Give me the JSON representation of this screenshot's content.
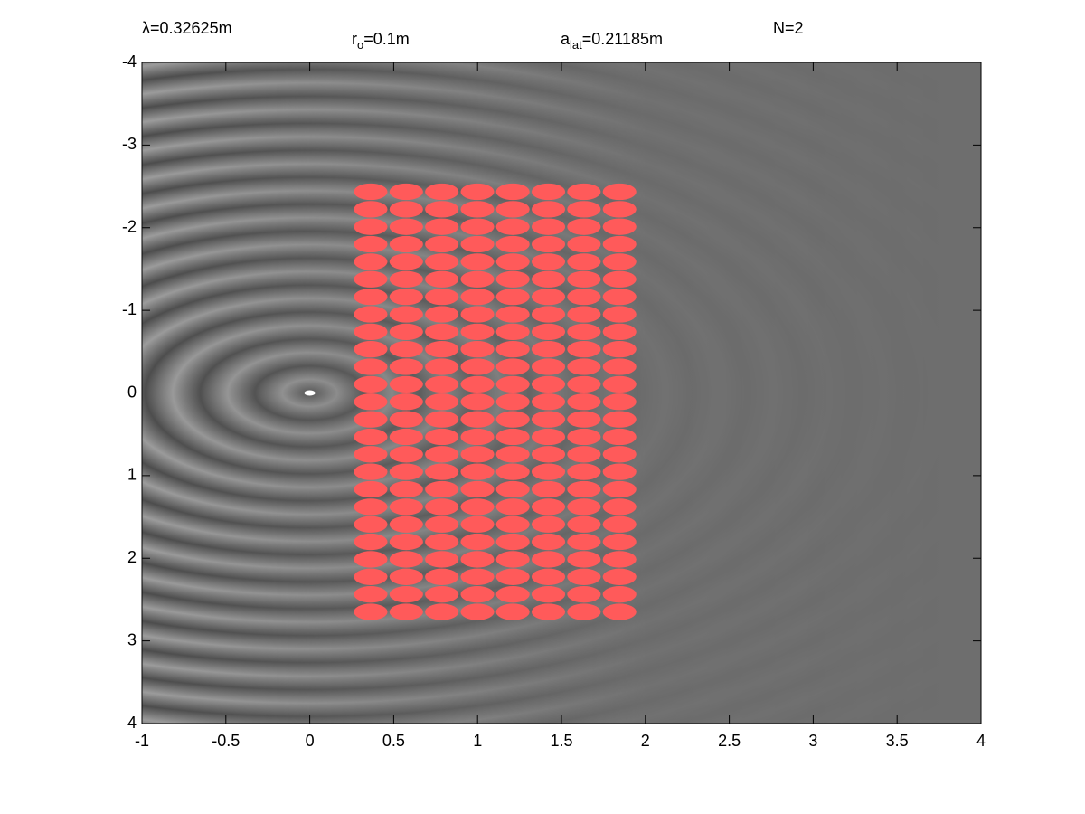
{
  "chart_data": {
    "type": "field",
    "annotations": {
      "lambda": "λ=0.32625m",
      "r": {
        "base": "r",
        "sub": "o",
        "rest": "=0.1m"
      },
      "a": {
        "base": "a",
        "sub": "lat",
        "rest": "=0.21185m"
      },
      "n": "N=2"
    },
    "wavelength": 0.32625,
    "source": [
      0,
      0
    ],
    "cylinder_radius": 0.1,
    "cylinder_color": "#ff5a5a",
    "lattice_x": [
      0.363,
      0.575,
      0.787,
      0.999,
      1.21,
      1.422,
      1.634,
      1.846
    ],
    "lattice_y": [
      -2.435,
      -2.223,
      -2.011,
      -1.8,
      -1.588,
      -1.376,
      -1.164,
      -0.952,
      -0.74,
      -0.529,
      -0.317,
      -0.105,
      0.107,
      0.319,
      0.531,
      0.742,
      0.954,
      1.166,
      1.378,
      1.59,
      1.801,
      2.013,
      2.225,
      2.437,
      2.649
    ],
    "xlim": [
      -1,
      4
    ],
    "ylim": [
      -4,
      4
    ],
    "ydir": "reverse",
    "xticks": [
      -1,
      -0.5,
      0,
      0.5,
      1,
      1.5,
      2,
      2.5,
      3,
      3.5,
      4
    ],
    "yticks": [
      -4,
      -3,
      -2,
      -1,
      0,
      1,
      2,
      3,
      4
    ]
  }
}
